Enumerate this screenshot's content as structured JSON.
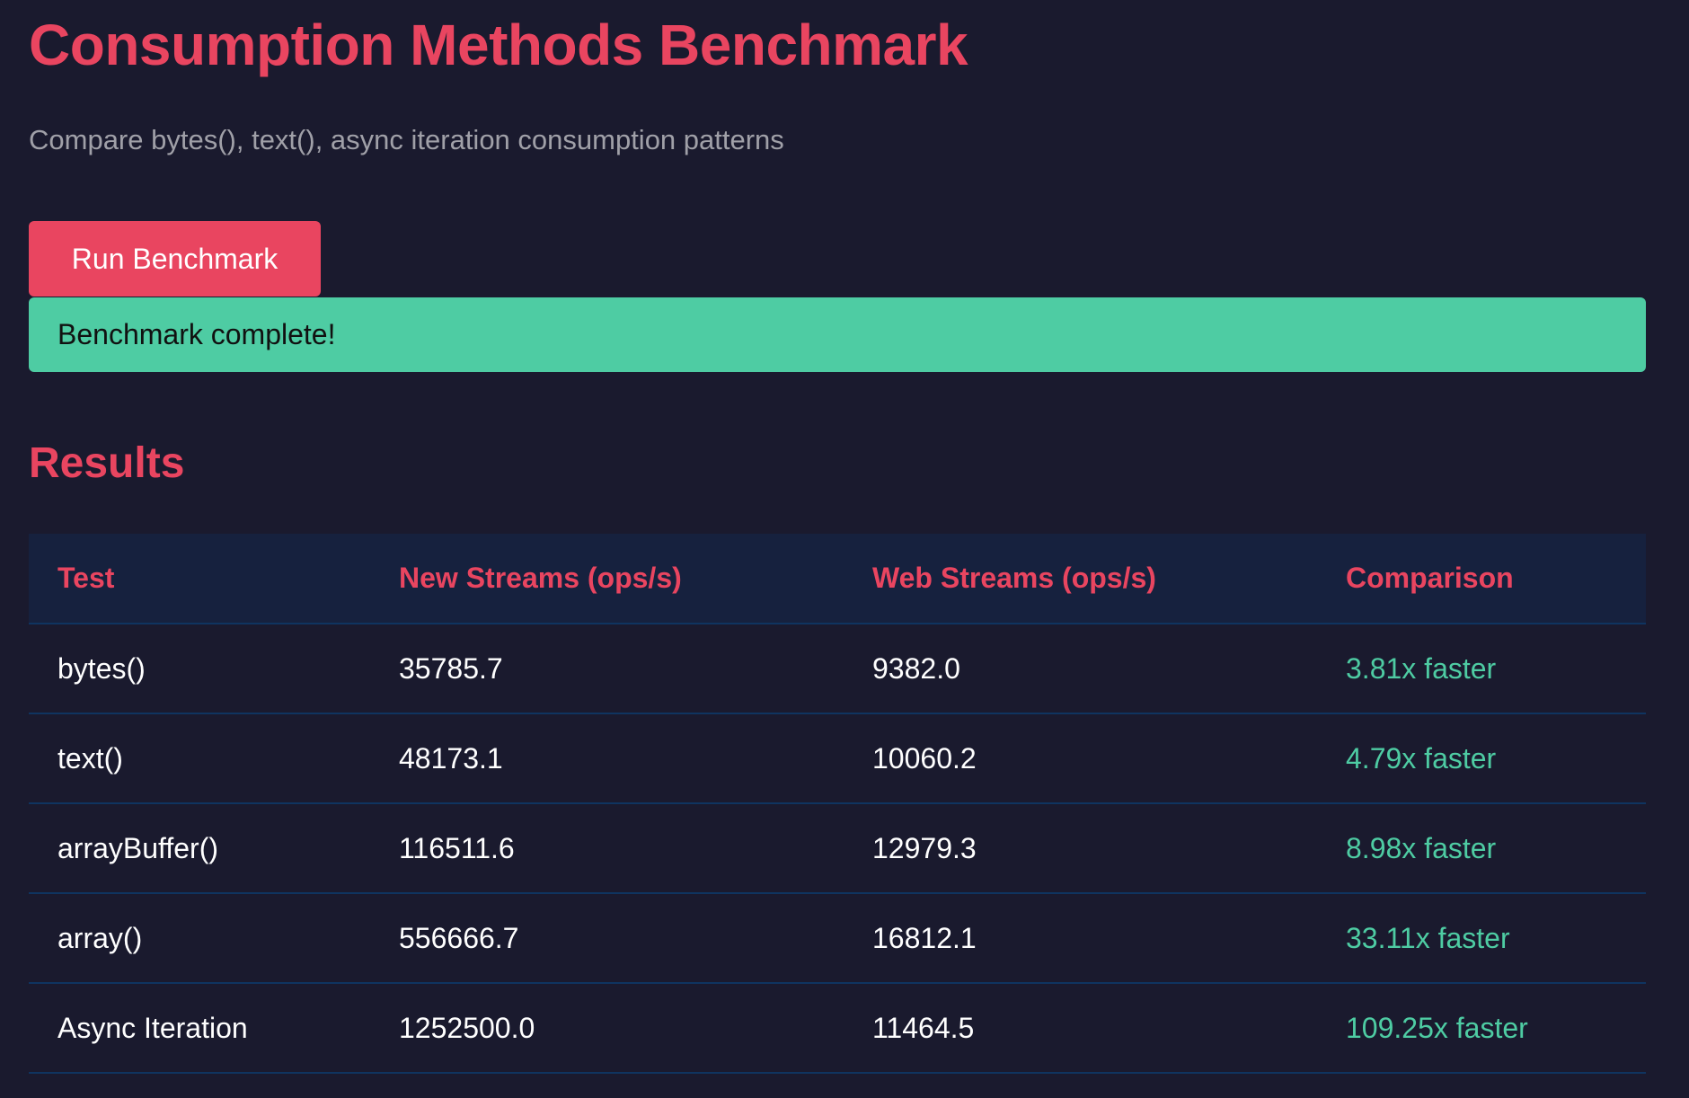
{
  "page": {
    "title": "Consumption Methods Benchmark",
    "subtitle": "Compare bytes(), text(), async iteration consumption patterns"
  },
  "controls": {
    "run_label": "Run Benchmark"
  },
  "status": {
    "message": "Benchmark complete!"
  },
  "results": {
    "heading": "Results",
    "columns": [
      "Test",
      "New Streams (ops/s)",
      "Web Streams (ops/s)",
      "Comparison"
    ],
    "rows": [
      {
        "test": "bytes()",
        "new_streams": "35785.7",
        "web_streams": "9382.0",
        "comparison": "3.81x faster"
      },
      {
        "test": "text()",
        "new_streams": "48173.1",
        "web_streams": "10060.2",
        "comparison": "4.79x faster"
      },
      {
        "test": "arrayBuffer()",
        "new_streams": "116511.6",
        "web_streams": "12979.3",
        "comparison": "8.98x faster"
      },
      {
        "test": "array()",
        "new_streams": "556666.7",
        "web_streams": "16812.1",
        "comparison": "33.11x faster"
      },
      {
        "test": "Async Iteration",
        "new_streams": "1252500.0",
        "web_streams": "11464.5",
        "comparison": "109.25x faster"
      }
    ]
  },
  "colors": {
    "background": "#1a1a2e",
    "accent": "#e94560",
    "success": "#4ecca3",
    "table_header_bg": "#16213e",
    "table_border": "#0f3460",
    "muted_text": "#a0a0a8"
  }
}
